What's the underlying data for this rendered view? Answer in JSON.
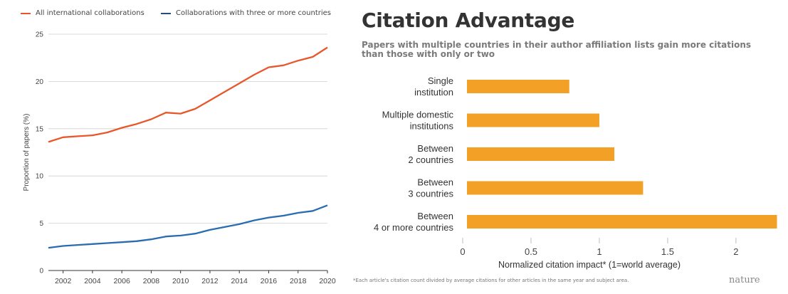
{
  "chart_data": [
    {
      "type": "line",
      "title": "",
      "xlabel": "",
      "ylabel": "Proportion of papers (%)",
      "xlim": [
        2001,
        2020
      ],
      "ylim": [
        0,
        25
      ],
      "xticks": [
        "2002",
        "2004",
        "2006",
        "2008",
        "2010",
        "2012",
        "2014",
        "2016",
        "2018",
        "2020"
      ],
      "yticks": [
        "0",
        "5",
        "10",
        "15",
        "20",
        "25"
      ],
      "grid": true,
      "legend": "top",
      "x": [
        2001,
        2002,
        2003,
        2004,
        2005,
        2006,
        2007,
        2008,
        2009,
        2010,
        2011,
        2012,
        2013,
        2014,
        2015,
        2016,
        2017,
        2018,
        2019,
        2020
      ],
      "series": [
        {
          "name": "All international collaborations",
          "color": "#e8572a",
          "values": [
            13.6,
            14.1,
            14.2,
            14.3,
            14.6,
            15.1,
            15.5,
            16.0,
            16.7,
            16.6,
            17.1,
            18.0,
            18.9,
            19.8,
            20.7,
            21.5,
            21.7,
            22.2,
            22.6,
            23.6
          ]
        },
        {
          "name": "Collaborations with three or more countries",
          "color": "#2a6cb0",
          "values": [
            2.4,
            2.6,
            2.7,
            2.8,
            2.9,
            3.0,
            3.1,
            3.3,
            3.6,
            3.7,
            3.9,
            4.3,
            4.6,
            4.9,
            5.3,
            5.6,
            5.8,
            6.1,
            6.3,
            6.9
          ]
        }
      ]
    },
    {
      "type": "bar",
      "orientation": "horizontal",
      "title": "Citation Advantage",
      "subtitle": "Papers with multiple countries in their author affiliation lists gain more citations than those with only or two",
      "xlabel": "Normalized citation impact* (1=world average)",
      "ylabel": "",
      "xlim": [
        0,
        2.3
      ],
      "xticks": [
        "0",
        "0.5",
        "1",
        "1.5",
        "2"
      ],
      "categories": [
        "Single institution",
        "Multiple domestic institutions",
        "Between 2 countries",
        "Between 3 countries",
        "Between 4 or more countries"
      ],
      "category_lines": [
        [
          "Single",
          "institution"
        ],
        [
          "Multiple domestic",
          "institutions"
        ],
        [
          "Between",
          "2 countries"
        ],
        [
          "Between",
          "3 countries"
        ],
        [
          "Between",
          "4 or more countries"
        ]
      ],
      "values": [
        0.78,
        1.0,
        1.11,
        1.32,
        2.3
      ],
      "bar_color": "#f3a126",
      "footnote": "*Each article's citation count divided by average citations for other articles in the same year and subject area.",
      "brand": "nature"
    }
  ]
}
